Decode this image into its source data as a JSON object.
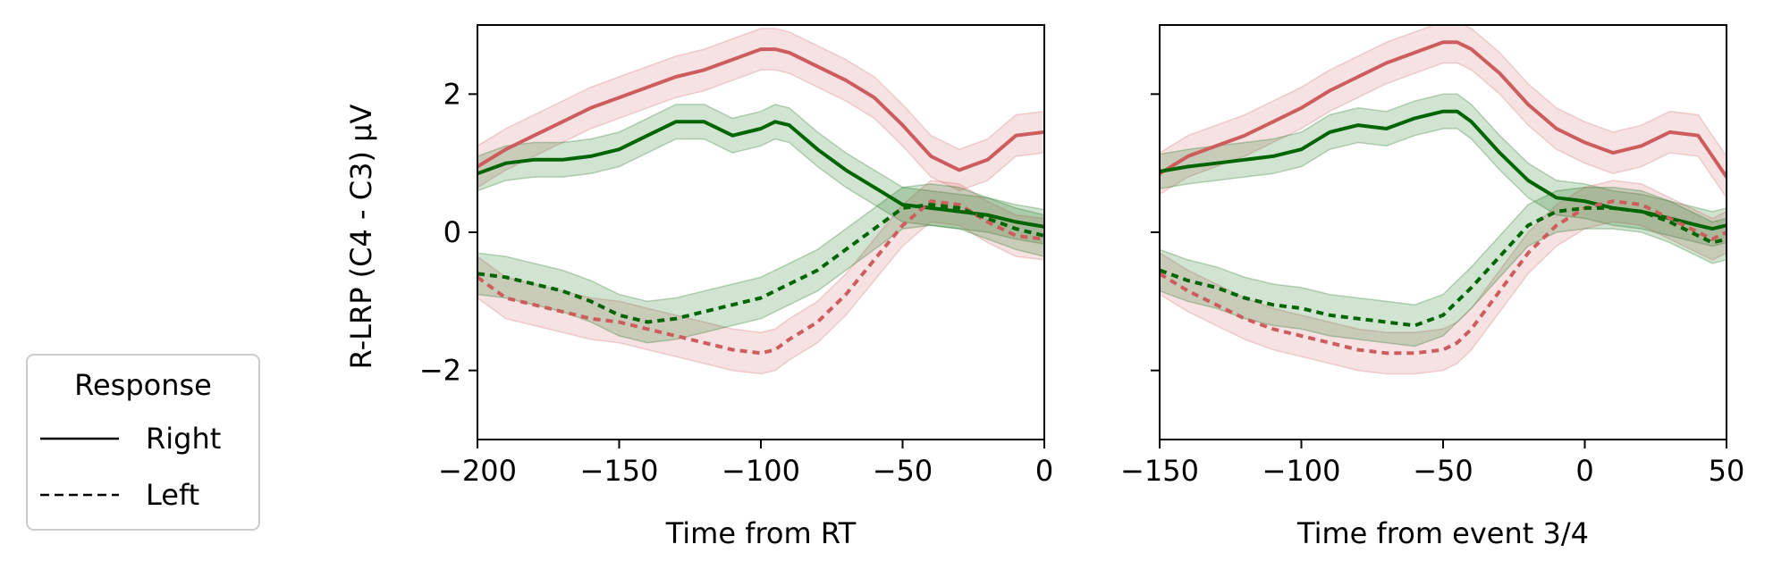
{
  "legend": {
    "title": "Response",
    "entries": [
      {
        "label": "Right",
        "style": "solid"
      },
      {
        "label": "Left",
        "style": "dashed"
      }
    ]
  },
  "colors": {
    "red": "#cd5c5c",
    "green": "#006400"
  },
  "ylabel": "R-LRP (C4 - C3) μV",
  "chart_data": [
    {
      "type": "line",
      "xlabel": "Time from RT",
      "ylabel": "R-LRP (C4 - C3) μV",
      "xlim": [
        -200,
        0
      ],
      "ylim": [
        -3,
        3
      ],
      "xticks": [
        -200,
        -150,
        -100,
        -50,
        0
      ],
      "yticks": [
        -2,
        0,
        2
      ],
      "x": [
        -200,
        -190,
        -180,
        -170,
        -160,
        -150,
        -140,
        -130,
        -120,
        -110,
        -100,
        -95,
        -90,
        -80,
        -70,
        -60,
        -50,
        -40,
        -30,
        -20,
        -10,
        0
      ],
      "series": [
        {
          "color": "red",
          "linestyle": "solid",
          "band": 0.3,
          "values": [
            0.95,
            1.2,
            1.4,
            1.6,
            1.8,
            1.95,
            2.1,
            2.25,
            2.35,
            2.5,
            2.65,
            2.65,
            2.6,
            2.4,
            2.2,
            1.95,
            1.55,
            1.1,
            0.9,
            1.05,
            1.4,
            1.45
          ]
        },
        {
          "color": "green",
          "linestyle": "solid",
          "band": 0.25,
          "values": [
            0.85,
            1.0,
            1.05,
            1.05,
            1.1,
            1.2,
            1.4,
            1.6,
            1.6,
            1.4,
            1.5,
            1.6,
            1.55,
            1.2,
            0.9,
            0.65,
            0.4,
            0.35,
            0.3,
            0.25,
            0.15,
            0.08
          ]
        },
        {
          "color": "red",
          "linestyle": "dashed",
          "band": 0.3,
          "values": [
            -0.65,
            -0.95,
            -1.05,
            -1.15,
            -1.25,
            -1.3,
            -1.4,
            -1.5,
            -1.6,
            -1.7,
            -1.75,
            -1.7,
            -1.55,
            -1.3,
            -0.9,
            -0.4,
            0.1,
            0.45,
            0.4,
            0.15,
            -0.05,
            -0.1
          ]
        },
        {
          "color": "green",
          "linestyle": "dashed",
          "band": 0.3,
          "values": [
            -0.6,
            -0.65,
            -0.75,
            -0.85,
            -1.0,
            -1.2,
            -1.3,
            -1.25,
            -1.15,
            -1.05,
            -0.95,
            -0.85,
            -0.75,
            -0.55,
            -0.25,
            0.05,
            0.35,
            0.4,
            0.35,
            0.2,
            0.05,
            -0.05
          ]
        }
      ]
    },
    {
      "type": "line",
      "xlabel": "Time from event 3/4",
      "ylabel": "",
      "xlim": [
        -150,
        50
      ],
      "ylim": [
        -3,
        3
      ],
      "xticks": [
        -150,
        -100,
        -50,
        0,
        50
      ],
      "yticks": [
        -2,
        0,
        2
      ],
      "x": [
        -150,
        -140,
        -130,
        -120,
        -110,
        -100,
        -90,
        -80,
        -70,
        -60,
        -50,
        -45,
        -40,
        -30,
        -20,
        -10,
        0,
        10,
        20,
        30,
        40,
        45,
        50
      ],
      "series": [
        {
          "color": "red",
          "linestyle": "solid",
          "band": 0.3,
          "values": [
            0.85,
            1.1,
            1.25,
            1.4,
            1.6,
            1.8,
            2.05,
            2.25,
            2.45,
            2.6,
            2.75,
            2.75,
            2.65,
            2.3,
            1.85,
            1.5,
            1.3,
            1.15,
            1.25,
            1.45,
            1.4,
            1.1,
            0.8
          ]
        },
        {
          "color": "green",
          "linestyle": "solid",
          "band": 0.25,
          "values": [
            0.88,
            0.95,
            1.0,
            1.05,
            1.1,
            1.2,
            1.45,
            1.55,
            1.5,
            1.65,
            1.75,
            1.75,
            1.6,
            1.15,
            0.75,
            0.5,
            0.45,
            0.35,
            0.3,
            0.2,
            0.1,
            0.05,
            0.1
          ]
        },
        {
          "color": "red",
          "linestyle": "dashed",
          "band": 0.3,
          "values": [
            -0.6,
            -0.85,
            -1.05,
            -1.25,
            -1.4,
            -1.5,
            -1.6,
            -1.7,
            -1.75,
            -1.75,
            -1.7,
            -1.6,
            -1.4,
            -0.85,
            -0.3,
            0.1,
            0.35,
            0.45,
            0.4,
            0.2,
            0.0,
            -0.1,
            0.0
          ]
        },
        {
          "color": "green",
          "linestyle": "dashed",
          "band": 0.3,
          "values": [
            -0.55,
            -0.7,
            -0.8,
            -0.95,
            -1.05,
            -1.1,
            -1.2,
            -1.25,
            -1.3,
            -1.35,
            -1.2,
            -1.0,
            -0.8,
            -0.35,
            0.1,
            0.3,
            0.35,
            0.35,
            0.3,
            0.15,
            -0.05,
            -0.15,
            -0.1
          ]
        }
      ]
    }
  ]
}
